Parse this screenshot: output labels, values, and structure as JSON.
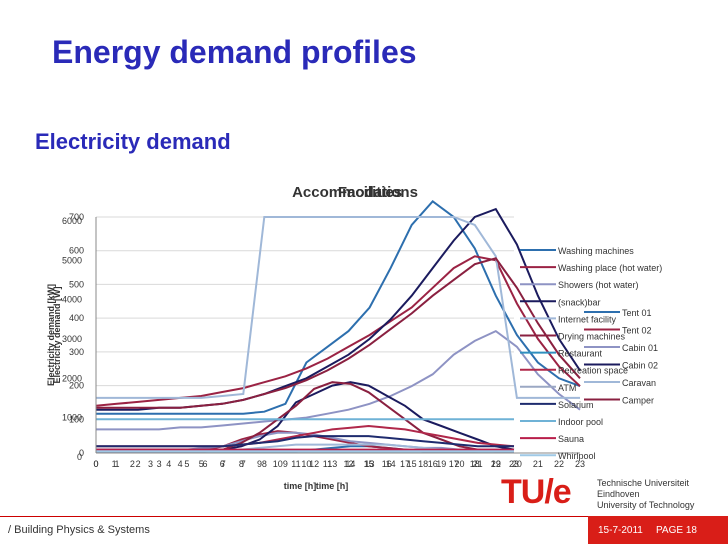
{
  "slide": {
    "title": "Energy demand profiles",
    "subtitle": "Electricity demand",
    "footer_left": "/ Building Physics & Systems",
    "footer_date": "15-7-2011",
    "footer_page": "PAGE 18",
    "logo_mark": "TU/e",
    "logo_lines": [
      "Technische Universiteit",
      "Eindhoven",
      "University of Technology"
    ]
  },
  "colors": {
    "title": "#2a2ab8",
    "tue_red": "#d91e18"
  },
  "chart_data": [
    {
      "type": "line",
      "title": "Facilities",
      "xlabel": "time [h]",
      "ylabel": "Electricity demand [kW]",
      "xlim": [
        0,
        23
      ],
      "ylim": [
        0,
        700
      ],
      "y_ticks": [
        0,
        100,
        200,
        300,
        400,
        500,
        600,
        700
      ],
      "x_ticks": [
        "0",
        "1",
        "2",
        "3",
        "4",
        "5",
        "6",
        "7",
        "8",
        "9",
        "10",
        "11",
        "12",
        "13",
        "14",
        "15",
        "16",
        "17",
        "18",
        "19",
        "20",
        "21",
        "22",
        "23"
      ],
      "legend_position": "right",
      "series": [
        {
          "name": "Washing machines",
          "color": "#2d6fae",
          "values": [
            5,
            5,
            5,
            5,
            5,
            5,
            5,
            5,
            5,
            5,
            5,
            5,
            10,
            15,
            20,
            20,
            15,
            10,
            5,
            5,
            5,
            5,
            5,
            5
          ]
        },
        {
          "name": "Washing place (hot water)",
          "color": "#9b2344",
          "values": [
            5,
            5,
            5,
            5,
            5,
            5,
            10,
            20,
            40,
            55,
            65,
            60,
            50,
            40,
            30,
            20,
            15,
            10,
            5,
            5,
            5,
            5,
            5,
            5
          ]
        },
        {
          "name": "Showers (hot water)",
          "color": "#8e93c4",
          "values": [
            10,
            10,
            10,
            10,
            10,
            10,
            15,
            20,
            35,
            50,
            60,
            60,
            55,
            45,
            35,
            30,
            25,
            20,
            15,
            15,
            10,
            10,
            10,
            10
          ]
        },
        {
          "name": "(snack)bar",
          "color": "#1b1b5e",
          "values": [
            10,
            10,
            10,
            10,
            10,
            10,
            10,
            10,
            20,
            40,
            80,
            150,
            175,
            200,
            210,
            200,
            170,
            140,
            100,
            80,
            60,
            40,
            20,
            10
          ]
        },
        {
          "name": "Internet facility",
          "color": "#a0b8d8",
          "values": [
            5,
            5,
            5,
            5,
            5,
            5,
            5,
            5,
            10,
            15,
            20,
            25,
            25,
            25,
            25,
            25,
            25,
            20,
            15,
            10,
            10,
            5,
            5,
            5
          ]
        },
        {
          "name": "Drying machines",
          "color": "#8a2040",
          "values": [
            5,
            5,
            5,
            5,
            5,
            5,
            5,
            10,
            30,
            60,
            100,
            140,
            190,
            210,
            205,
            180,
            140,
            100,
            60,
            40,
            20,
            10,
            5,
            5
          ]
        },
        {
          "name": "Restaurant",
          "color": "#2f8fbf",
          "values": [
            5,
            5,
            5,
            5,
            5,
            5,
            5,
            5,
            5,
            5,
            5,
            5,
            5,
            5,
            5,
            5,
            5,
            5,
            5,
            5,
            5,
            5,
            5,
            5
          ]
        },
        {
          "name": "Recreation space",
          "color": "#b0284a",
          "values": [
            20,
            20,
            20,
            20,
            20,
            20,
            20,
            20,
            25,
            30,
            40,
            50,
            60,
            70,
            75,
            80,
            75,
            70,
            60,
            50,
            40,
            30,
            25,
            20
          ]
        },
        {
          "name": "ATM",
          "color": "#9ba8c4",
          "values": [
            5,
            5,
            5,
            5,
            5,
            5,
            5,
            5,
            5,
            5,
            5,
            5,
            5,
            5,
            5,
            5,
            5,
            5,
            5,
            5,
            5,
            5,
            5,
            5
          ]
        },
        {
          "name": "Solarium",
          "color": "#1e2b6e",
          "values": [
            20,
            20,
            20,
            20,
            20,
            20,
            20,
            20,
            25,
            30,
            35,
            45,
            50,
            50,
            50,
            50,
            45,
            40,
            35,
            30,
            25,
            20,
            20,
            20
          ]
        },
        {
          "name": "Indoor pool",
          "color": "#6fb2d6",
          "values": [
            100,
            100,
            100,
            100,
            100,
            100,
            100,
            100,
            100,
            100,
            100,
            100,
            100,
            100,
            100,
            100,
            100,
            100,
            100,
            100,
            100,
            100,
            100,
            100
          ]
        },
        {
          "name": "Sauna",
          "color": "#b81e4a",
          "values": [
            10,
            10,
            10,
            10,
            10,
            10,
            10,
            10,
            10,
            10,
            10,
            10,
            10,
            10,
            10,
            10,
            10,
            10,
            10,
            10,
            10,
            10,
            10,
            10
          ]
        },
        {
          "name": "Whirlpool",
          "color": "#9fc9e6",
          "values": [
            5,
            5,
            5,
            5,
            5,
            5,
            5,
            5,
            5,
            5,
            5,
            5,
            5,
            5,
            5,
            5,
            5,
            5,
            5,
            5,
            5,
            5,
            5,
            5
          ]
        }
      ]
    },
    {
      "type": "line",
      "title": "Accommodations",
      "xlabel": "time [h]",
      "ylabel": "Electricity demand [W]",
      "xlim": [
        0,
        23
      ],
      "ylim": [
        0,
        6000
      ],
      "y_ticks": [
        0,
        1000,
        2000,
        3000,
        4000,
        5000,
        6000
      ],
      "x_ticks": [
        "0",
        "1",
        "2",
        "3",
        "4",
        "5",
        "6",
        "7",
        "8",
        "9",
        "10",
        "11",
        "12",
        "13",
        "14",
        "15",
        "16",
        "17",
        "18",
        "19",
        "20",
        "21",
        "22",
        "23"
      ],
      "legend_position": "right",
      "series": [
        {
          "name": "Tent 01",
          "color": "#2d6fae",
          "values": [
            1000,
            1000,
            1000,
            1000,
            1000,
            1000,
            1000,
            1000,
            1050,
            1250,
            2300,
            2700,
            3100,
            3700,
            4700,
            5800,
            6400,
            6000,
            5200,
            4000,
            3000,
            2300,
            1900,
            1700
          ]
        },
        {
          "name": "Tent 02",
          "color": "#9b2344",
          "values": [
            1200,
            1250,
            1300,
            1350,
            1400,
            1450,
            1550,
            1650,
            1800,
            1950,
            2150,
            2400,
            2700,
            3000,
            3350,
            3700,
            4200,
            4700,
            5000,
            4900,
            3800,
            2900,
            2200,
            1700
          ]
        },
        {
          "name": "Cabin 01",
          "color": "#8e93c4",
          "values": [
            600,
            600,
            600,
            600,
            650,
            650,
            700,
            750,
            800,
            850,
            900,
            1000,
            1100,
            1250,
            1450,
            1700,
            2000,
            2500,
            2850,
            3100,
            2700,
            2000,
            1500,
            1100
          ]
        },
        {
          "name": "Cabin 02",
          "color": "#1b1b5e",
          "values": [
            1100,
            1100,
            1100,
            1150,
            1150,
            1200,
            1250,
            1350,
            1500,
            1700,
            1900,
            2200,
            2500,
            2900,
            3400,
            4000,
            4700,
            5400,
            6000,
            6200,
            5300,
            4000,
            2900,
            2100
          ]
        },
        {
          "name": "Caravan",
          "color": "#a0b8d8",
          "values": [
            1400,
            1400,
            1400,
            1400,
            1400,
            1400,
            1450,
            1500,
            6000,
            6000,
            6000,
            6000,
            6000,
            6000,
            6000,
            6000,
            6000,
            6000,
            5800,
            5000,
            1400,
            1400,
            1400,
            1400
          ]
        },
        {
          "name": "Camper",
          "color": "#8a2040",
          "values": [
            1150,
            1150,
            1150,
            1150,
            1150,
            1200,
            1250,
            1350,
            1500,
            1650,
            1850,
            2100,
            2400,
            2750,
            3150,
            3550,
            4000,
            4400,
            4800,
            4950,
            4200,
            3300,
            2500,
            1900
          ]
        }
      ]
    }
  ]
}
